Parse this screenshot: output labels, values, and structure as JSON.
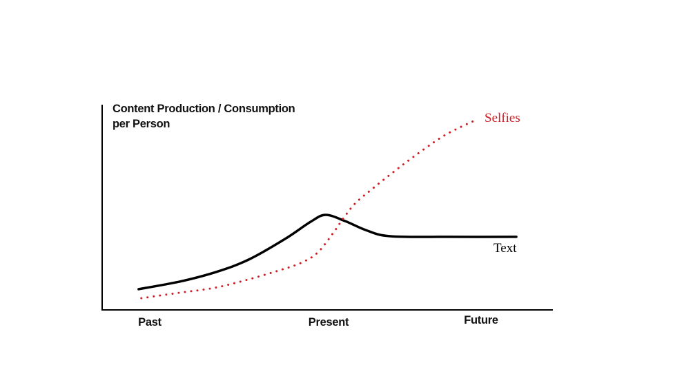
{
  "chart": {
    "title_line1": "Content Production / Consumption",
    "title_line2": "per Person",
    "series_label_selfies": "Selfies",
    "series_label_text": "Text",
    "x_tick_past": "Past",
    "x_tick_present": "Present",
    "x_tick_future": "Future"
  },
  "colors": {
    "selfies_series": "#cf1d25",
    "text_series": "#000000",
    "axis": "#000000"
  },
  "chart_data": {
    "type": "line",
    "title": "Content Production / Consumption per Person",
    "ylabel": "Content Production / Consumption per Person",
    "xlabel": "",
    "x_tick_labels": [
      "Past",
      "Present",
      "Future"
    ],
    "x_axis_type": "qualitative timeline (no numeric scale)",
    "y_axis_type": "qualitative relative scale 0-100 (no numeric ticks shown)",
    "xlim": [
      0,
      100
    ],
    "ylim": [
      0,
      100
    ],
    "grid": false,
    "legend_position": "inline labels at right ends of lines",
    "series": [
      {
        "name": "Text",
        "color": "#000000",
        "line_style": "solid",
        "points": [
          [
            8.1,
            10.1
          ],
          [
            17.2,
            13.8
          ],
          [
            25.3,
            18.5
          ],
          [
            32.5,
            24.5
          ],
          [
            40.6,
            34.6
          ],
          [
            46.3,
            43.0
          ],
          [
            49.6,
            46.3
          ],
          [
            53.9,
            43.3
          ],
          [
            58.5,
            38.9
          ],
          [
            63.9,
            35.9
          ],
          [
            76.9,
            35.6
          ],
          [
            91.9,
            35.6
          ]
        ],
        "annotation": "rises through Past, peaks just before Present, dips and plateaus into Future"
      },
      {
        "name": "Selfies",
        "color": "#cf1d25",
        "line_style": "dotted",
        "points": [
          [
            8.7,
            5.7
          ],
          [
            17.2,
            8.4
          ],
          [
            24.8,
            10.7
          ],
          [
            31.7,
            14.4
          ],
          [
            38.6,
            18.8
          ],
          [
            44.0,
            22.8
          ],
          [
            47.8,
            27.9
          ],
          [
            51.3,
            37.6
          ],
          [
            53.5,
            44.6
          ],
          [
            56.2,
            52.0
          ],
          [
            60.0,
            59.1
          ],
          [
            64.6,
            67.1
          ],
          [
            69.2,
            74.8
          ],
          [
            74.9,
            83.6
          ],
          [
            78.4,
            87.9
          ],
          [
            82.7,
            92.3
          ]
        ],
        "annotation": "slow rise through Past, overtakes Text near Present, climbs steeply into Future"
      }
    ]
  }
}
